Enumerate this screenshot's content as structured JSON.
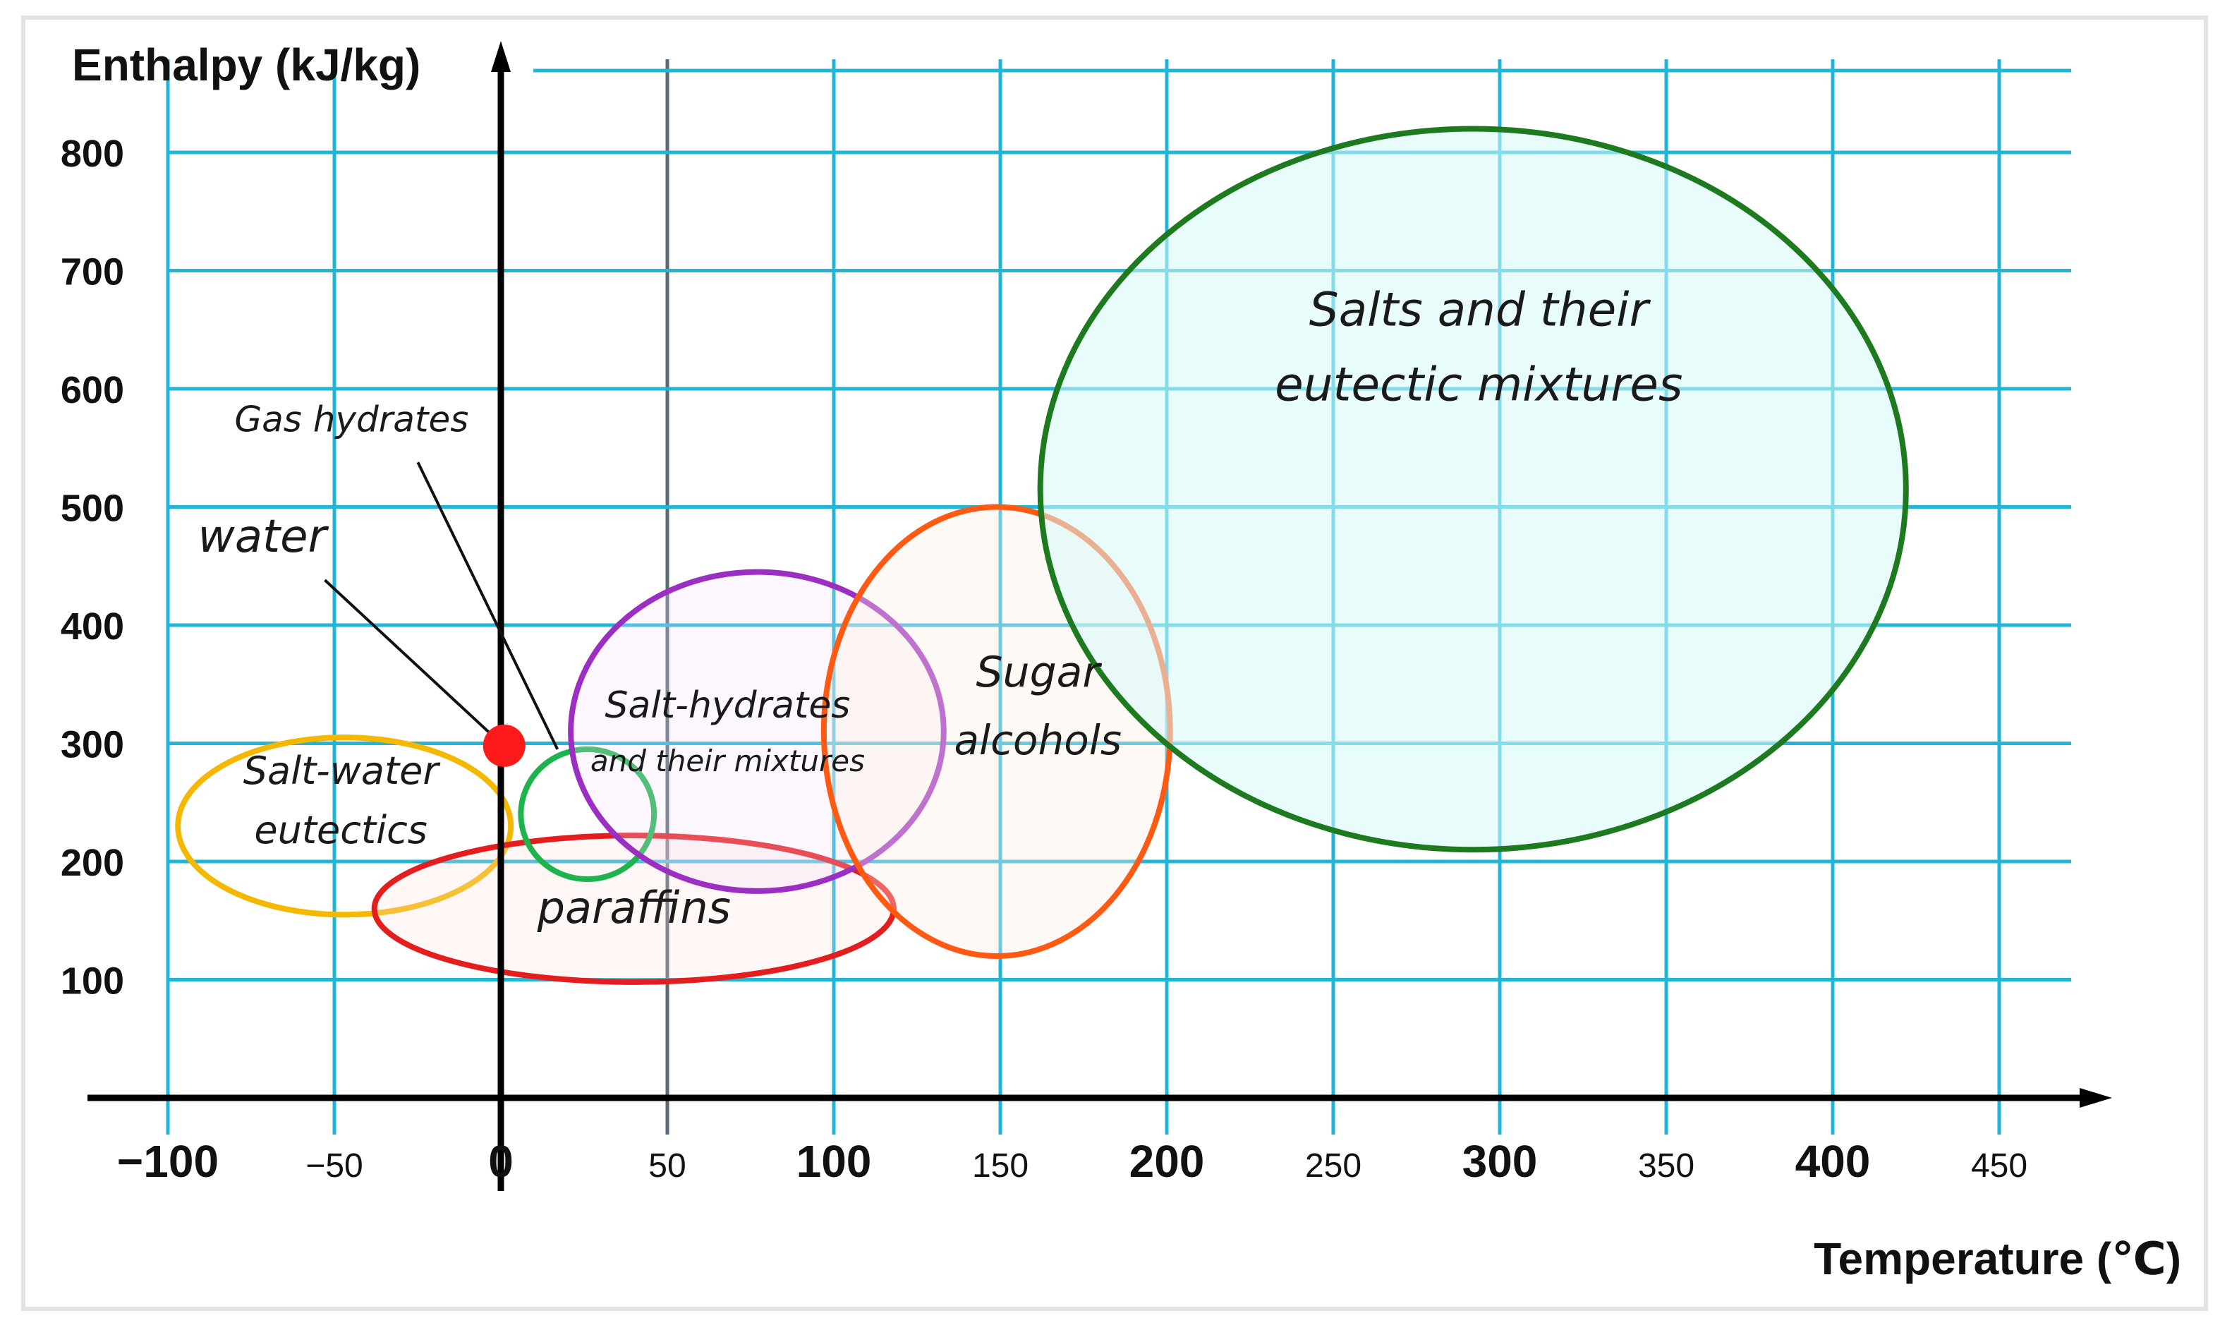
{
  "chart_data": {
    "type": "scatter",
    "ylabel": "Enthalpy (kJ/kg)",
    "xlabel": "Temperature (℃)",
    "xlim": [
      -100,
      470
    ],
    "ylim": [
      0,
      830
    ],
    "x_ticks": [
      {
        "v": -100,
        "label": "−100",
        "big": true
      },
      {
        "v": -50,
        "label": "−50",
        "big": false
      },
      {
        "v": 0,
        "label": "0",
        "big": true
      },
      {
        "v": 50,
        "label": "50",
        "big": false
      },
      {
        "v": 100,
        "label": "100",
        "big": true
      },
      {
        "v": 150,
        "label": "150",
        "big": false
      },
      {
        "v": 200,
        "label": "200",
        "big": true
      },
      {
        "v": 250,
        "label": "250",
        "big": false
      },
      {
        "v": 300,
        "label": "300",
        "big": true
      },
      {
        "v": 350,
        "label": "350",
        "big": false
      },
      {
        "v": 400,
        "label": "400",
        "big": true
      },
      {
        "v": 450,
        "label": "450",
        "big": false
      }
    ],
    "y_ticks": [
      100,
      200,
      300,
      400,
      500,
      600,
      700,
      800
    ],
    "grid": true,
    "regions": [
      {
        "name": "Salt-water eutectics",
        "lines": [
          "Salt-water",
          "eutectics"
        ],
        "cx": -47,
        "cy": 230,
        "rx": 50,
        "ry": 75,
        "color": "#f5b800",
        "fill": "none"
      },
      {
        "name": "paraffins",
        "lines": [
          "paraffins"
        ],
        "cx": 40,
        "cy": 160,
        "rx": 78,
        "ry": 62,
        "color": "#e41e1e",
        "fill": "rgba(255,220,220,0.25)"
      },
      {
        "name": "Gas hydrates",
        "lines": [],
        "cx": 26,
        "cy": 240,
        "rx": 20,
        "ry": 55,
        "color": "#1db34d",
        "fill": "none"
      },
      {
        "name": "Salt-hydrates and their mixtures",
        "lines": [
          "Salt-hydrates",
          "and their mixtures"
        ],
        "cx": 77,
        "cy": 310,
        "rx": 56,
        "ry": 135,
        "color": "#9b2fc2",
        "fill": "rgba(245,225,250,0.25)"
      },
      {
        "name": "Sugar alcohols",
        "lines": [
          "Sugar",
          "alcohols"
        ],
        "cx": 149,
        "cy": 310,
        "rx": 52,
        "ry": 190,
        "color": "#ff5a14",
        "fill": "rgba(255,238,225,0.35)"
      },
      {
        "name": "Salts and their eutectic mixtures",
        "lines": [
          "Salts and their",
          "eutectic mixtures"
        ],
        "cx": 292,
        "cy": 515,
        "rx": 130,
        "ry": 305,
        "color": "#1e7a1e",
        "fill": "rgba(215,250,250,0.55)"
      }
    ],
    "points": [
      {
        "name": "water",
        "x": 1,
        "y": 298,
        "color": "#ff1a1a"
      }
    ],
    "annotations": [
      {
        "text": "water",
        "x": -91,
        "y": 462,
        "size": "large",
        "target_x": 0,
        "target_y": 300
      },
      {
        "text": "Gas hydrates",
        "x": -80,
        "y": 564,
        "size": "small",
        "target_x": 17,
        "target_y": 295
      }
    ]
  }
}
